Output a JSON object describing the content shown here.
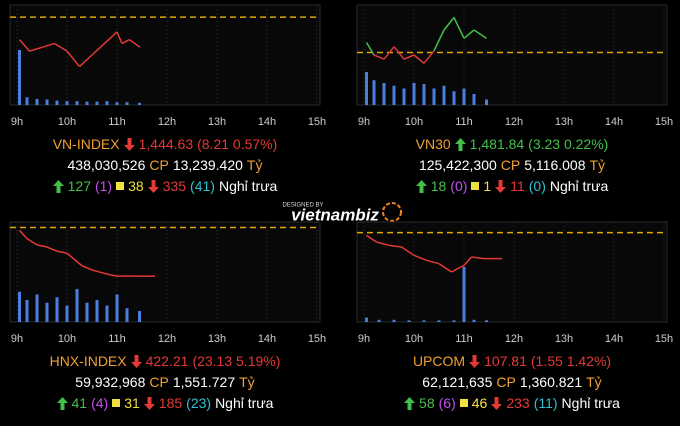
{
  "chart_data": [
    {
      "type": "line",
      "name": "VN-INDEX",
      "direction": "down",
      "value": "1,444.63",
      "change": "(8.21 0.57%)",
      "volume_text": "438,030,526",
      "cp_label": "CP",
      "cp_value": "13,239.420",
      "unit": "Tỷ",
      "advances": "127",
      "ceiling": "(1)",
      "unchanged": "38",
      "declines": "335",
      "floor": "(41)",
      "status": "Nghỉ trưa",
      "xlim": [
        9,
        15
      ],
      "xticks": [
        {
          "value": 9,
          "label": "9h"
        },
        {
          "value": 10,
          "label": "10h"
        },
        {
          "value": 11,
          "label": "11h"
        },
        {
          "value": 12,
          "label": "12h"
        },
        {
          "value": 13,
          "label": "13h"
        },
        {
          "value": 14,
          "label": "14h"
        },
        {
          "value": 15,
          "label": "15h"
        }
      ],
      "ylim": [
        1430,
        1456
      ],
      "reference": 1452.84,
      "reference_color": "#e0a800",
      "up_color": "#43c04a",
      "down_color": "#e53935",
      "x": [
        9.05,
        9.25,
        9.5,
        9.75,
        10,
        10.25,
        10.5,
        10.75,
        11,
        11.1,
        11.25,
        11.46
      ],
      "series": [
        {
          "values": [
            1447,
            1444,
            1445,
            1446,
            1444,
            1440,
            1443,
            1446,
            1449,
            1446,
            1447,
            1445
          ]
        }
      ],
      "vlim": [
        0,
        100
      ],
      "volume": {
        "color": "#4a7fe0",
        "x": [
          9.05,
          9.2,
          9.4,
          9.6,
          9.8,
          10,
          10.2,
          10.4,
          10.6,
          10.8,
          11,
          11.2,
          11.45
        ],
        "values": [
          100,
          14,
          11,
          10,
          8,
          7,
          7,
          6,
          6,
          7,
          5,
          5,
          4
        ]
      }
    },
    {
      "type": "line",
      "name": "VN30",
      "direction": "up",
      "value": "1,481.84",
      "change": "(3.23 0.22%)",
      "volume_text": "125,422,300",
      "cp_label": "CP",
      "cp_value": "5,116.008",
      "unit": "Tỷ",
      "advances": "18",
      "ceiling": "(0)",
      "unchanged": "1",
      "declines": "11",
      "floor": "(0)",
      "status": "Nghỉ trưa",
      "xlim": [
        9,
        15
      ],
      "xticks": [
        {
          "value": 9,
          "label": "9h"
        },
        {
          "value": 10,
          "label": "10h"
        },
        {
          "value": 11,
          "label": "11h"
        },
        {
          "value": 12,
          "label": "12h"
        },
        {
          "value": 13,
          "label": "13h"
        },
        {
          "value": 14,
          "label": "14h"
        },
        {
          "value": 15,
          "label": "15h"
        }
      ],
      "ylim": [
        1466,
        1490
      ],
      "reference": 1478.61,
      "reference_color": "#e0a800",
      "up_color": "#43c04a",
      "down_color": "#e53935",
      "x": [
        9.05,
        9.2,
        9.4,
        9.6,
        9.8,
        10,
        10.2,
        10.4,
        10.6,
        10.8,
        11,
        11.2,
        11.45
      ],
      "series": [
        {
          "values": [
            1481,
            1478,
            1477,
            1480,
            1477,
            1478,
            1476,
            1479,
            1484,
            1487,
            1482,
            1484,
            1482
          ]
        }
      ],
      "vlim": [
        0,
        100
      ],
      "volume": {
        "color": "#4a7fe0",
        "x": [
          9.05,
          9.2,
          9.4,
          9.6,
          9.8,
          10,
          10.2,
          10.4,
          10.6,
          10.8,
          11,
          11.2,
          11.45
        ],
        "values": [
          60,
          45,
          40,
          35,
          30,
          40,
          38,
          30,
          35,
          25,
          30,
          20,
          10
        ]
      }
    },
    {
      "type": "line",
      "name": "HNX-INDEX",
      "direction": "down",
      "value": "422.21",
      "change": "(23.13 5.19%)",
      "volume_text": "59,932,968",
      "cp_label": "CP",
      "cp_value": "1,551.727",
      "unit": "Tỷ",
      "advances": "41",
      "ceiling": "(4)",
      "unchanged": "31",
      "declines": "185",
      "floor": "(23)",
      "status": "Nghỉ trưa",
      "xlim": [
        9,
        15
      ],
      "xticks": [
        {
          "value": 9,
          "label": "9h"
        },
        {
          "value": 10,
          "label": "10h"
        },
        {
          "value": 11,
          "label": "11h"
        },
        {
          "value": 12,
          "label": "12h"
        },
        {
          "value": 13,
          "label": "13h"
        },
        {
          "value": 14,
          "label": "14h"
        },
        {
          "value": 15,
          "label": "15h"
        }
      ],
      "ylim": [
        400,
        448
      ],
      "reference": 445.34,
      "reference_color": "#e0a800",
      "up_color": "#43c04a",
      "down_color": "#e53935",
      "x": [
        9.05,
        9.2,
        9.4,
        9.6,
        9.8,
        10,
        10.15,
        10.3,
        10.5,
        10.8,
        11,
        11.5,
        11.76
      ],
      "series": [
        {
          "values": [
            444,
            440,
            437,
            436,
            434,
            433,
            430,
            427,
            425,
            423,
            422,
            422,
            422
          ]
        }
      ],
      "vlim": [
        0,
        100
      ],
      "volume": {
        "color": "#4a7fe0",
        "x": [
          9.05,
          9.2,
          9.4,
          9.6,
          9.8,
          10,
          10.2,
          10.4,
          10.6,
          10.8,
          11,
          11.2,
          11.45
        ],
        "values": [
          55,
          40,
          50,
          35,
          45,
          30,
          60,
          35,
          40,
          30,
          50,
          25,
          20
        ]
      }
    },
    {
      "type": "line",
      "name": "UPCOM",
      "direction": "down",
      "value": "107.81",
      "change": "(1.55 1.42%)",
      "volume_text": "62,121,635",
      "cp_label": "CP",
      "cp_value": "1,360.821",
      "unit": "Tỷ",
      "advances": "58",
      "ceiling": "(6)",
      "unchanged": "46",
      "declines": "233",
      "floor": "(11)",
      "status": "Nghỉ trưa",
      "xlim": [
        9,
        15
      ],
      "xticks": [
        {
          "value": 9,
          "label": "9h"
        },
        {
          "value": 10,
          "label": "10h"
        },
        {
          "value": 11,
          "label": "11h"
        },
        {
          "value": 12,
          "label": "12h"
        },
        {
          "value": 13,
          "label": "13h"
        },
        {
          "value": 14,
          "label": "14h"
        },
        {
          "value": 15,
          "label": "15h"
        }
      ],
      "ylim": [
        104,
        110
      ],
      "reference": 109.36,
      "reference_color": "#e0a800",
      "up_color": "#43c04a",
      "down_color": "#e53935",
      "x": [
        9.05,
        9.25,
        9.5,
        9.75,
        10,
        10.25,
        10.5,
        10.75,
        11,
        11.15,
        11.4,
        11.76
      ],
      "series": [
        {
          "values": [
            109.2,
            108.8,
            108.6,
            108.5,
            108.0,
            107.7,
            107.5,
            107.0,
            107.4,
            107.9,
            107.8,
            107.8
          ]
        }
      ],
      "vlim": [
        0,
        100
      ],
      "volume": {
        "color": "#4a7fe0",
        "x": [
          9.05,
          9.3,
          9.6,
          9.9,
          10.2,
          10.5,
          10.8,
          11,
          11.2,
          11.45
        ],
        "values": [
          8,
          4,
          4,
          3,
          3,
          3,
          3,
          100,
          4,
          3
        ]
      }
    }
  ],
  "watermark": {
    "small": "DESIGNED BY",
    "brand": "vietnambiz"
  }
}
